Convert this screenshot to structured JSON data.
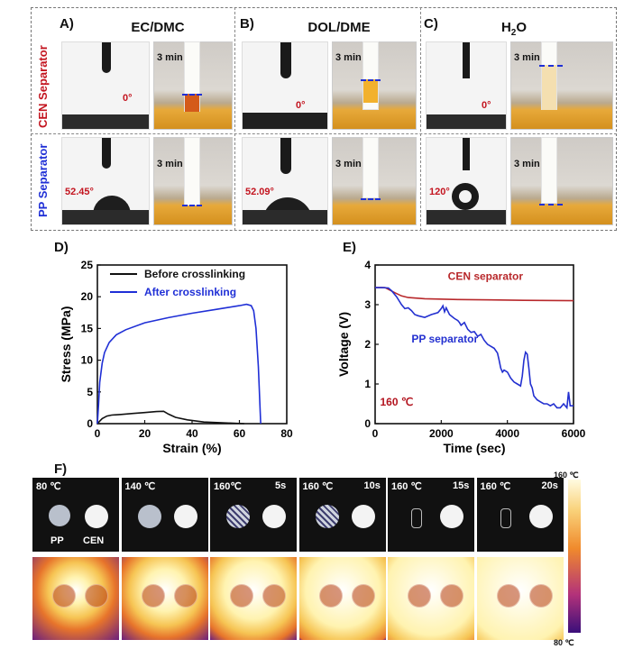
{
  "panel_a": {
    "letter": "A)",
    "title": "EC/DMC",
    "cen_angle": "0°",
    "pp_angle": "52.45°",
    "time": "3 min"
  },
  "panel_b": {
    "letter": "B)",
    "title": "DOL/DME",
    "cen_angle": "0°",
    "pp_angle": "52.09°",
    "time": "3 min"
  },
  "panel_c": {
    "letter": "C)",
    "title_main": "H",
    "title_sub": "2",
    "title_tail": "O",
    "cen_angle": "0°",
    "pp_angle": "120°",
    "time": "3 min"
  },
  "row_labels": {
    "cen": "CEN Separator",
    "pp": "PP Separator"
  },
  "colors": {
    "cen_red": "#c3141f",
    "pp_blue": "#1f2fd6",
    "before_black": "#111111",
    "after_blue": "#1f2fd6",
    "cen_line": "#b8282b",
    "pp_line": "#2330d0"
  },
  "panel_d": {
    "letter": "D)"
  },
  "panel_e": {
    "letter": "E)"
  },
  "panel_f": {
    "letter": "F)",
    "frames": [
      {
        "temp": "80 ℃",
        "time": "",
        "pp_label": "PP",
        "cen_label": "CEN"
      },
      {
        "temp": "140 ℃",
        "time": ""
      },
      {
        "temp": "160℃",
        "time": "5s"
      },
      {
        "temp": "160 ℃",
        "time": "10s"
      },
      {
        "temp": "160 ℃",
        "time": "15s"
      },
      {
        "temp": "160 ℃",
        "time": "20s"
      }
    ],
    "colorbar": {
      "top": "160 ℃",
      "bottom": "80 ℃"
    }
  },
  "chart_data": [
    {
      "type": "line",
      "xlabel": "Strain (%)",
      "ylabel": "Stress (MPa)",
      "xlim": [
        0,
        80
      ],
      "ylim": [
        0,
        25
      ],
      "xticks": [
        0,
        20,
        40,
        60,
        80
      ],
      "yticks": [
        0,
        5,
        10,
        15,
        20,
        25
      ],
      "legend_position": "top-right",
      "series": [
        {
          "name": "Before crosslinking",
          "x": [
            0,
            1,
            2,
            4,
            6,
            10,
            15,
            20,
            25,
            28,
            30,
            33,
            38,
            45,
            55,
            62
          ],
          "y": [
            0,
            0.4,
            0.8,
            1.2,
            1.35,
            1.45,
            1.6,
            1.75,
            1.9,
            1.95,
            1.5,
            1.0,
            0.6,
            0.25,
            0.1,
            0.0
          ]
        },
        {
          "name": "After crosslinking",
          "x": [
            0,
            0.5,
            1,
            2,
            3,
            5,
            8,
            12,
            20,
            30,
            40,
            50,
            55,
            60,
            63,
            65,
            66,
            67,
            68,
            69
          ],
          "y": [
            0,
            3,
            6.5,
            9.5,
            11.2,
            12.8,
            14.0,
            14.8,
            15.9,
            16.7,
            17.4,
            18.0,
            18.3,
            18.6,
            18.8,
            18.6,
            17.8,
            15,
            9,
            0
          ]
        }
      ]
    },
    {
      "type": "line",
      "xlabel": "Time (sec)",
      "ylabel": "Voltage (V)",
      "xlim": [
        0,
        6000
      ],
      "ylim": [
        0,
        4
      ],
      "xticks": [
        0,
        2000,
        4000,
        6000
      ],
      "yticks": [
        0,
        1,
        2,
        3,
        4
      ],
      "annotation": "160 ℃",
      "series": [
        {
          "name": "CEN separator",
          "x": [
            0,
            300,
            600,
            800,
            1000,
            1500,
            2500,
            3500,
            4500,
            6000
          ],
          "y": [
            3.43,
            3.43,
            3.3,
            3.22,
            3.18,
            3.15,
            3.13,
            3.12,
            3.11,
            3.1
          ]
        },
        {
          "name": "PP separator",
          "x": [
            0,
            200,
            400,
            500,
            650,
            800,
            900,
            1000,
            1100,
            1200,
            1300,
            1500,
            1700,
            1900,
            2000,
            2050,
            2100,
            2150,
            2250,
            2400,
            2500,
            2550,
            2600,
            2700,
            2800,
            2900,
            3000,
            3100,
            3200,
            3300,
            3400,
            3500,
            3600,
            3700,
            3750,
            3800,
            3850,
            3900,
            4000,
            4100,
            4200,
            4300,
            4400,
            4450,
            4500,
            4550,
            4600,
            4650,
            4700,
            4750,
            4800,
            4900,
            5000,
            5100,
            5200,
            5300,
            5400,
            5500,
            5600,
            5700,
            5800,
            5850,
            5900,
            6000
          ],
          "y": [
            3.43,
            3.43,
            3.42,
            3.35,
            3.2,
            3.0,
            2.9,
            2.92,
            2.85,
            2.75,
            2.72,
            2.68,
            2.75,
            2.8,
            2.9,
            2.97,
            2.82,
            2.92,
            2.75,
            2.65,
            2.6,
            2.55,
            2.48,
            2.55,
            2.38,
            2.3,
            2.32,
            2.2,
            2.25,
            2.1,
            2.0,
            1.95,
            1.9,
            1.78,
            1.6,
            1.4,
            1.3,
            1.35,
            1.3,
            1.15,
            1.05,
            1.0,
            0.95,
            1.2,
            1.6,
            1.8,
            1.75,
            1.4,
            1.0,
            0.9,
            0.7,
            0.6,
            0.55,
            0.5,
            0.5,
            0.45,
            0.5,
            0.4,
            0.4,
            0.5,
            0.4,
            0.8,
            0.45,
            0.45
          ]
        }
      ]
    }
  ]
}
